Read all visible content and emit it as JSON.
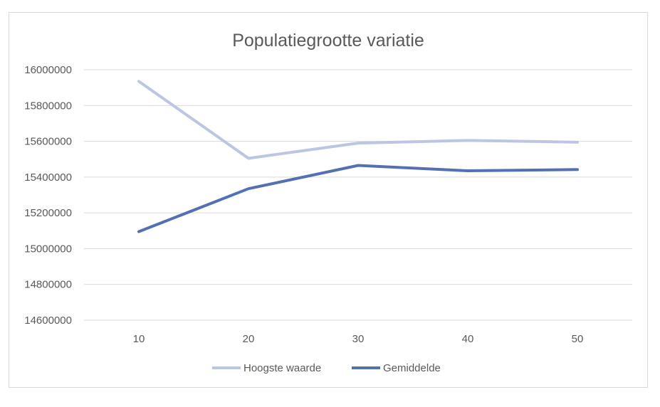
{
  "chart_data": {
    "type": "line",
    "title": "Populatiegrootte variatie",
    "xlabel": "",
    "ylabel": "",
    "categories": [
      "10",
      "20",
      "30",
      "40",
      "50"
    ],
    "series": [
      {
        "name": "Hoogste waarde",
        "color": "#bcc6e2",
        "values": [
          15935000,
          15505000,
          15590000,
          15605000,
          15595000
        ]
      },
      {
        "name": "Gemiddelde",
        "color": "#5470b3",
        "values": [
          15095000,
          15335000,
          15465000,
          15435000,
          15442000
        ]
      }
    ],
    "ylim": [
      14600000,
      16000000
    ],
    "yticks": [
      "16000000",
      "15800000",
      "15600000",
      "15400000",
      "15200000",
      "15000000",
      "14800000",
      "14600000"
    ],
    "grid": true,
    "legend_position": "bottom"
  }
}
